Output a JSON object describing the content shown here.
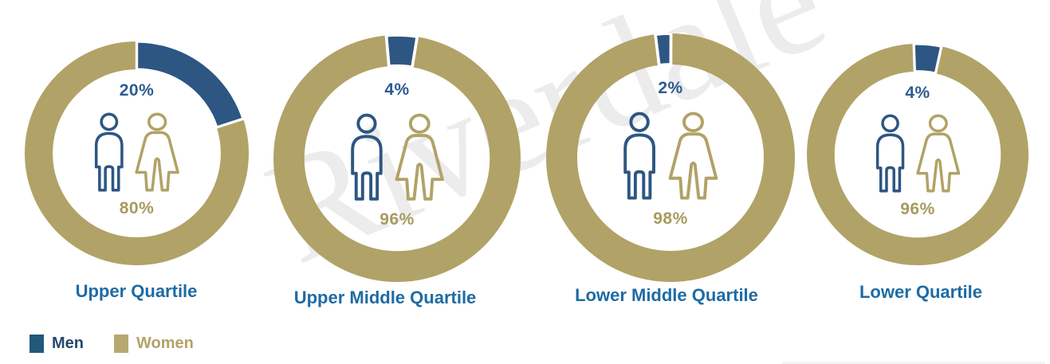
{
  "watermark": {
    "text": "Riverdale"
  },
  "legend": {
    "items": [
      {
        "label": "Men",
        "swatch_color": "#20597c",
        "text_color": "#25486e"
      },
      {
        "label": "Women",
        "swatch_color": "#b7a872",
        "text_color": "#b3a266"
      }
    ]
  },
  "icons": {
    "man": "man-outline-icon",
    "woman": "woman-outline-icon"
  },
  "colors": {
    "men_segment": "#2d5682",
    "women_segment": "#b1a267",
    "men_pct_text": "#2e5a92",
    "women_pct_text": "#a89a5f",
    "title_text": "#1e6ba5",
    "watermark_gray": "#ececec"
  },
  "chart_data": {
    "type": "pie",
    "subtype": "donut-set",
    "series_names": [
      "Men",
      "Women"
    ],
    "legend_position": "bottom-left",
    "grid": false,
    "colors": {
      "men": "#2d5682",
      "women": "#b1a267"
    },
    "charts": [
      {
        "title": "Upper Quartile",
        "men_pct": 20,
        "women_pct": 80,
        "men_label": "20%",
        "women_label": "80%",
        "start_angle_deg": 0
      },
      {
        "title": "Upper Middle Quartile",
        "men_pct": 4,
        "women_pct": 96,
        "men_label": "4%",
        "women_label": "96%",
        "start_angle_deg": -5
      },
      {
        "title": "Lower Middle Quartile",
        "men_pct": 2,
        "women_pct": 98,
        "men_label": "2%",
        "women_label": "98%",
        "start_angle_deg": -7
      },
      {
        "title": "Lower Quartile",
        "men_pct": 4,
        "women_pct": 96,
        "men_label": "4%",
        "women_label": "96%",
        "start_angle_deg": -2
      }
    ]
  }
}
